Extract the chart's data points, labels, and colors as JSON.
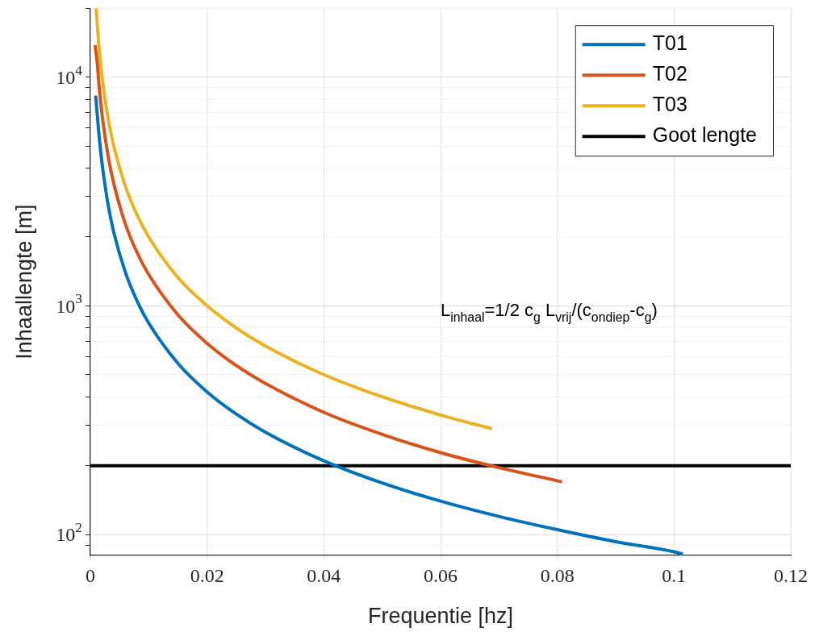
{
  "chart_data": {
    "type": "line",
    "xlabel": "Frequentie [hz]",
    "ylabel": "Inhaallengte [m]",
    "annotations": [
      "L$_{inhaal}$=1/2 c$_{g}$ L$_{vrij}$/(c$_{ondiep}$-c$_{g}$)"
    ],
    "series": [
      {
        "name": "T01",
        "color": "#0072bd",
        "x": [
          0.0009,
          0.0015,
          0.002,
          0.003,
          0.004,
          0.006,
          0.008,
          0.01,
          0.015,
          0.02,
          0.025,
          0.03,
          0.04,
          0.05,
          0.06,
          0.07,
          0.08,
          0.09,
          0.1,
          0.1015
        ],
        "values": [
          8300,
          5500,
          4200,
          2800,
          2100,
          1400,
          1050,
          840,
          560,
          420,
          336,
          280,
          210,
          168,
          140,
          120,
          105,
          93,
          84,
          82
        ]
      },
      {
        "name": "T02",
        "color": "#d95319",
        "x": [
          0.0008,
          0.0012,
          0.0015,
          0.002,
          0.003,
          0.004,
          0.006,
          0.008,
          0.01,
          0.015,
          0.02,
          0.025,
          0.03,
          0.04,
          0.05,
          0.06,
          0.07,
          0.0808
        ],
        "values": [
          13800,
          11400,
          9100,
          6850,
          4570,
          3430,
          2280,
          1710,
          1370,
          913,
          685,
          548,
          457,
          342,
          274,
          228,
          196,
          170
        ]
      },
      {
        "name": "T03",
        "color": "#edb120",
        "x": [
          0.001,
          0.0015,
          0.002,
          0.003,
          0.004,
          0.006,
          0.008,
          0.01,
          0.015,
          0.02,
          0.025,
          0.03,
          0.04,
          0.05,
          0.06,
          0.0688
        ],
        "values": [
          20000,
          13300,
          10000,
          6670,
          5000,
          3330,
          2500,
          2000,
          1330,
          1000,
          800,
          667,
          500,
          400,
          333,
          290
        ]
      },
      {
        "name": "Goot lengte",
        "color": "#000000",
        "x": [
          0,
          0.12
        ],
        "values": [
          200,
          200
        ]
      }
    ],
    "xlim": [
      0,
      0.12
    ],
    "xticks": [
      0,
      0.02,
      0.04,
      0.06,
      0.08,
      0.1,
      0.12
    ],
    "ylim": [
      81,
      20000
    ],
    "yticks": [
      {
        "value": 90,
        "label": null
      },
      {
        "value": 100,
        "label": "10$^{2}$"
      },
      {
        "value": 200,
        "label": null
      },
      {
        "value": 300,
        "label": null
      },
      {
        "value": 400,
        "label": null
      },
      {
        "value": 500,
        "label": null
      },
      {
        "value": 600,
        "label": null
      },
      {
        "value": 700,
        "label": null
      },
      {
        "value": 800,
        "label": null
      },
      {
        "value": 900,
        "label": null
      },
      {
        "value": 1000,
        "label": "10$^{3}$"
      },
      {
        "value": 2000,
        "label": null
      },
      {
        "value": 3000,
        "label": null
      },
      {
        "value": 4000,
        "label": null
      },
      {
        "value": 5000,
        "label": null
      },
      {
        "value": 6000,
        "label": null
      },
      {
        "value": 7000,
        "label": null
      },
      {
        "value": 8000,
        "label": null
      },
      {
        "value": 9000,
        "label": null
      },
      {
        "value": 10000,
        "label": "10$^{4}$"
      },
      {
        "value": 20000,
        "label": null
      }
    ],
    "log": "y",
    "grid": true,
    "legend": "top right",
    "marker": "none",
    "line_style": "solid"
  }
}
